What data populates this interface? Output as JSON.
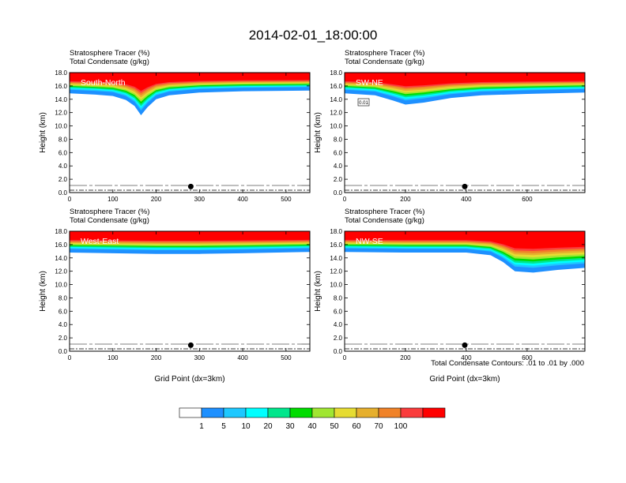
{
  "figure": {
    "title": "2014-02-01_18:00:00",
    "note": "Total Condensate Contours: .01 to .01 by .000",
    "colorbar": {
      "levels": [
        "1",
        "5",
        "10",
        "20",
        "30",
        "40",
        "50",
        "60",
        "70",
        "100"
      ],
      "colors": [
        "#ffffff",
        "#1e90ff",
        "#1ec8ff",
        "#00ffff",
        "#00e68c",
        "#00dc00",
        "#a0e632",
        "#e6dc32",
        "#e6af2d",
        "#f08228",
        "#fa3c3c",
        "#ff0000"
      ]
    }
  },
  "chart_data": [
    {
      "type": "heatmap",
      "panel": "South-North",
      "title_line1": "Stratosphere Tracer   (%)",
      "title_line2": "Total Condensate   (g/kg)",
      "ylabel": "Height (km)",
      "xlabel": "",
      "xlim": [
        0,
        555
      ],
      "ylim": [
        0,
        18
      ],
      "xticks": [
        0,
        100,
        200,
        300,
        400,
        500
      ],
      "yticks": [
        "0.0",
        "2.0",
        "4.0",
        "6.0",
        "8.0",
        "10.0",
        "12.0",
        "14.0",
        "16.0",
        "18.0"
      ],
      "tropopause_km": [
        [
          0,
          15.3
        ],
        [
          60,
          15.1
        ],
        [
          100,
          14.9
        ],
        [
          130,
          14.3
        ],
        [
          150,
          13.4
        ],
        [
          165,
          12.0
        ],
        [
          180,
          13.2
        ],
        [
          200,
          14.4
        ],
        [
          230,
          15.0
        ],
        [
          300,
          15.4
        ],
        [
          400,
          15.6
        ],
        [
          555,
          15.7
        ]
      ],
      "marker_x": 280
    },
    {
      "type": "heatmap",
      "panel": "SW-NE",
      "title_line1": "Stratosphere Tracer   (%)",
      "title_line2": "Total Condensate   (g/kg)",
      "ylabel": "Height (km)",
      "xlabel": "",
      "xlim": [
        0,
        790
      ],
      "ylim": [
        0,
        18
      ],
      "xticks": [
        0,
        200,
        400,
        600
      ],
      "yticks": [
        "0.0",
        "2.0",
        "4.0",
        "6.0",
        "8.0",
        "10.0",
        "12.0",
        "14.0",
        "16.0",
        "18.0"
      ],
      "tropopause_km": [
        [
          0,
          15.3
        ],
        [
          100,
          15.0
        ],
        [
          160,
          14.2
        ],
        [
          200,
          13.6
        ],
        [
          260,
          13.9
        ],
        [
          350,
          14.6
        ],
        [
          450,
          15.0
        ],
        [
          600,
          15.2
        ],
        [
          790,
          15.4
        ]
      ],
      "contour_label": "0.01",
      "marker_x": 395
    },
    {
      "type": "heatmap",
      "panel": "West-East",
      "title_line1": "Stratosphere Tracer   (%)",
      "title_line2": "Total Condensate   (g/kg)",
      "ylabel": "Height (km)",
      "xlabel": "Grid Point (dx=3km)",
      "xlim": [
        0,
        555
      ],
      "ylim": [
        0,
        18
      ],
      "xticks": [
        0,
        100,
        200,
        300,
        400,
        500
      ],
      "yticks": [
        "0.0",
        "2.0",
        "4.0",
        "6.0",
        "8.0",
        "10.0",
        "12.0",
        "14.0",
        "16.0",
        "18.0"
      ],
      "tropopause_km": [
        [
          0,
          15.2
        ],
        [
          100,
          15.1
        ],
        [
          200,
          15.0
        ],
        [
          300,
          15.0
        ],
        [
          400,
          15.1
        ],
        [
          555,
          15.3
        ]
      ],
      "marker_x": 280
    },
    {
      "type": "heatmap",
      "panel": "NW-SE",
      "title_line1": "Stratosphere Tracer   (%)",
      "title_line2": "Total Condensate   (g/kg)",
      "ylabel": "Height (km)",
      "xlabel": "Grid Point (dx=3km)",
      "xlim": [
        0,
        790
      ],
      "ylim": [
        0,
        18
      ],
      "xticks": [
        0,
        200,
        400,
        600
      ],
      "yticks": [
        "0.0",
        "2.0",
        "4.0",
        "6.0",
        "8.0",
        "10.0",
        "12.0",
        "14.0",
        "16.0",
        "18.0"
      ],
      "tropopause_km": [
        [
          0,
          15.3
        ],
        [
          200,
          15.2
        ],
        [
          400,
          15.2
        ],
        [
          480,
          14.8
        ],
        [
          520,
          13.8
        ],
        [
          560,
          12.4
        ],
        [
          620,
          12.2
        ],
        [
          700,
          12.6
        ],
        [
          790,
          12.9
        ]
      ],
      "marker_x": 395
    }
  ]
}
